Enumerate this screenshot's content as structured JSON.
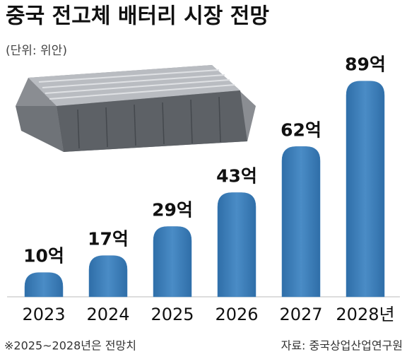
{
  "chart_data": {
    "type": "bar",
    "title": "중국 전고체 배터리 시장 전망",
    "subtitle": "(단위: 위안)",
    "categories": [
      "2023",
      "2024",
      "2025",
      "2026",
      "2027",
      "2028년"
    ],
    "values": [
      10,
      17,
      29,
      43,
      62,
      89
    ],
    "value_labels": [
      "10억",
      "17억",
      "29억",
      "43억",
      "62억",
      "89억"
    ],
    "color": "#3f7fb9",
    "footnote": "※2025~2028년은 전망치",
    "source": "자료: 중국상업산업연구원"
  }
}
